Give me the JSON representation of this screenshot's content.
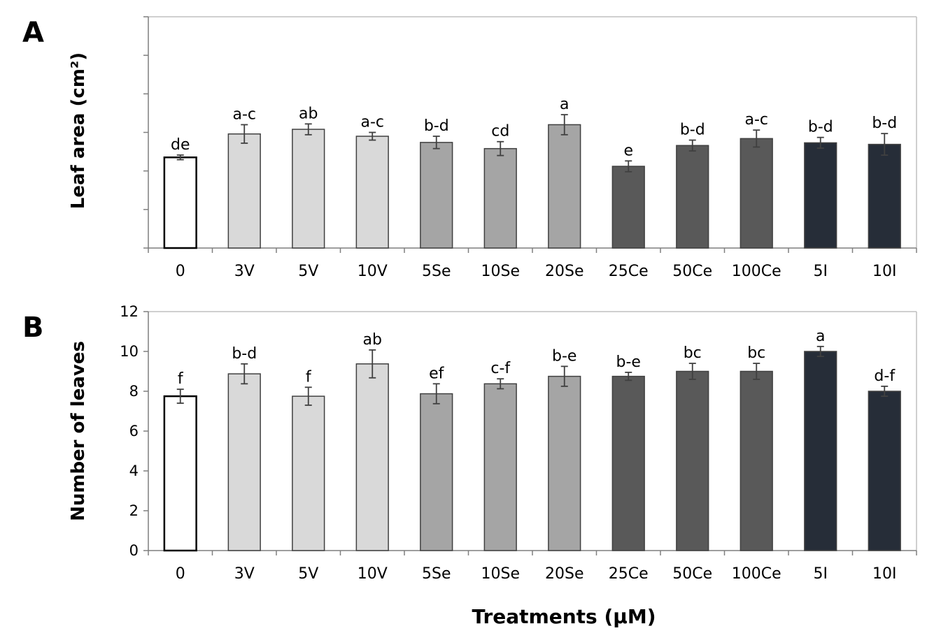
{
  "figure": {
    "xlabel": "Treatments (μM)"
  },
  "chart_data": [
    {
      "panel": "A",
      "type": "bar",
      "ylabel": "Leaf area (cm²)",
      "grid": false,
      "show_y_tick_labels": false,
      "ylim": [
        0,
        3
      ],
      "y_ticks": [
        0,
        0.5,
        1,
        1.5,
        2,
        2.5,
        3
      ],
      "categories": [
        "0",
        "3V",
        "5V",
        "10V",
        "5Se",
        "10Se",
        "20Se",
        "25Ce",
        "50Ce",
        "100Ce",
        "5I",
        "10I"
      ],
      "values": [
        1.176,
        1.48,
        1.54,
        1.45,
        1.37,
        1.29,
        1.6,
        1.06,
        1.33,
        1.42,
        1.365,
        1.345
      ],
      "errors": [
        0.03,
        0.12,
        0.07,
        0.05,
        0.08,
        0.09,
        0.13,
        0.07,
        0.07,
        0.11,
        0.07,
        0.14
      ],
      "letters": [
        "de",
        "a-c",
        "ab",
        "a-c",
        "b-d",
        "cd",
        "a",
        "e",
        "b-d",
        "a-c",
        "b-d",
        "b-d"
      ],
      "colors": [
        "#ffffff",
        "#d9d9d9",
        "#d9d9d9",
        "#d9d9d9",
        "#a5a5a5",
        "#a5a5a5",
        "#a5a5a5",
        "#595959",
        "#595959",
        "#595959",
        "#262d38",
        "#262d38"
      ]
    },
    {
      "panel": "B",
      "type": "bar",
      "ylabel": "Number of leaves",
      "grid": false,
      "show_y_tick_labels": true,
      "ylim": [
        0,
        12
      ],
      "y_ticks": [
        0,
        2,
        4,
        6,
        8,
        10,
        12
      ],
      "categories": [
        "0",
        "3V",
        "5V",
        "10V",
        "5Se",
        "10Se",
        "20Se",
        "25Ce",
        "50Ce",
        "100Ce",
        "5I",
        "10I"
      ],
      "values": [
        7.75,
        8.875,
        7.75,
        9.375,
        7.875,
        8.375,
        8.75,
        8.75,
        9.0,
        9.0,
        10.0,
        8.0
      ],
      "errors": [
        0.35,
        0.5,
        0.45,
        0.7,
        0.5,
        0.25,
        0.5,
        0.2,
        0.4,
        0.4,
        0.25,
        0.25
      ],
      "letters": [
        "f",
        "b-d",
        "f",
        "ab",
        "ef",
        "c-f",
        "b-e",
        "b-e",
        "bc",
        "bc",
        "a",
        "d-f"
      ],
      "colors": [
        "#ffffff",
        "#d9d9d9",
        "#d9d9d9",
        "#d9d9d9",
        "#a5a5a5",
        "#a5a5a5",
        "#a5a5a5",
        "#595959",
        "#595959",
        "#595959",
        "#262d38",
        "#262d38"
      ]
    }
  ]
}
